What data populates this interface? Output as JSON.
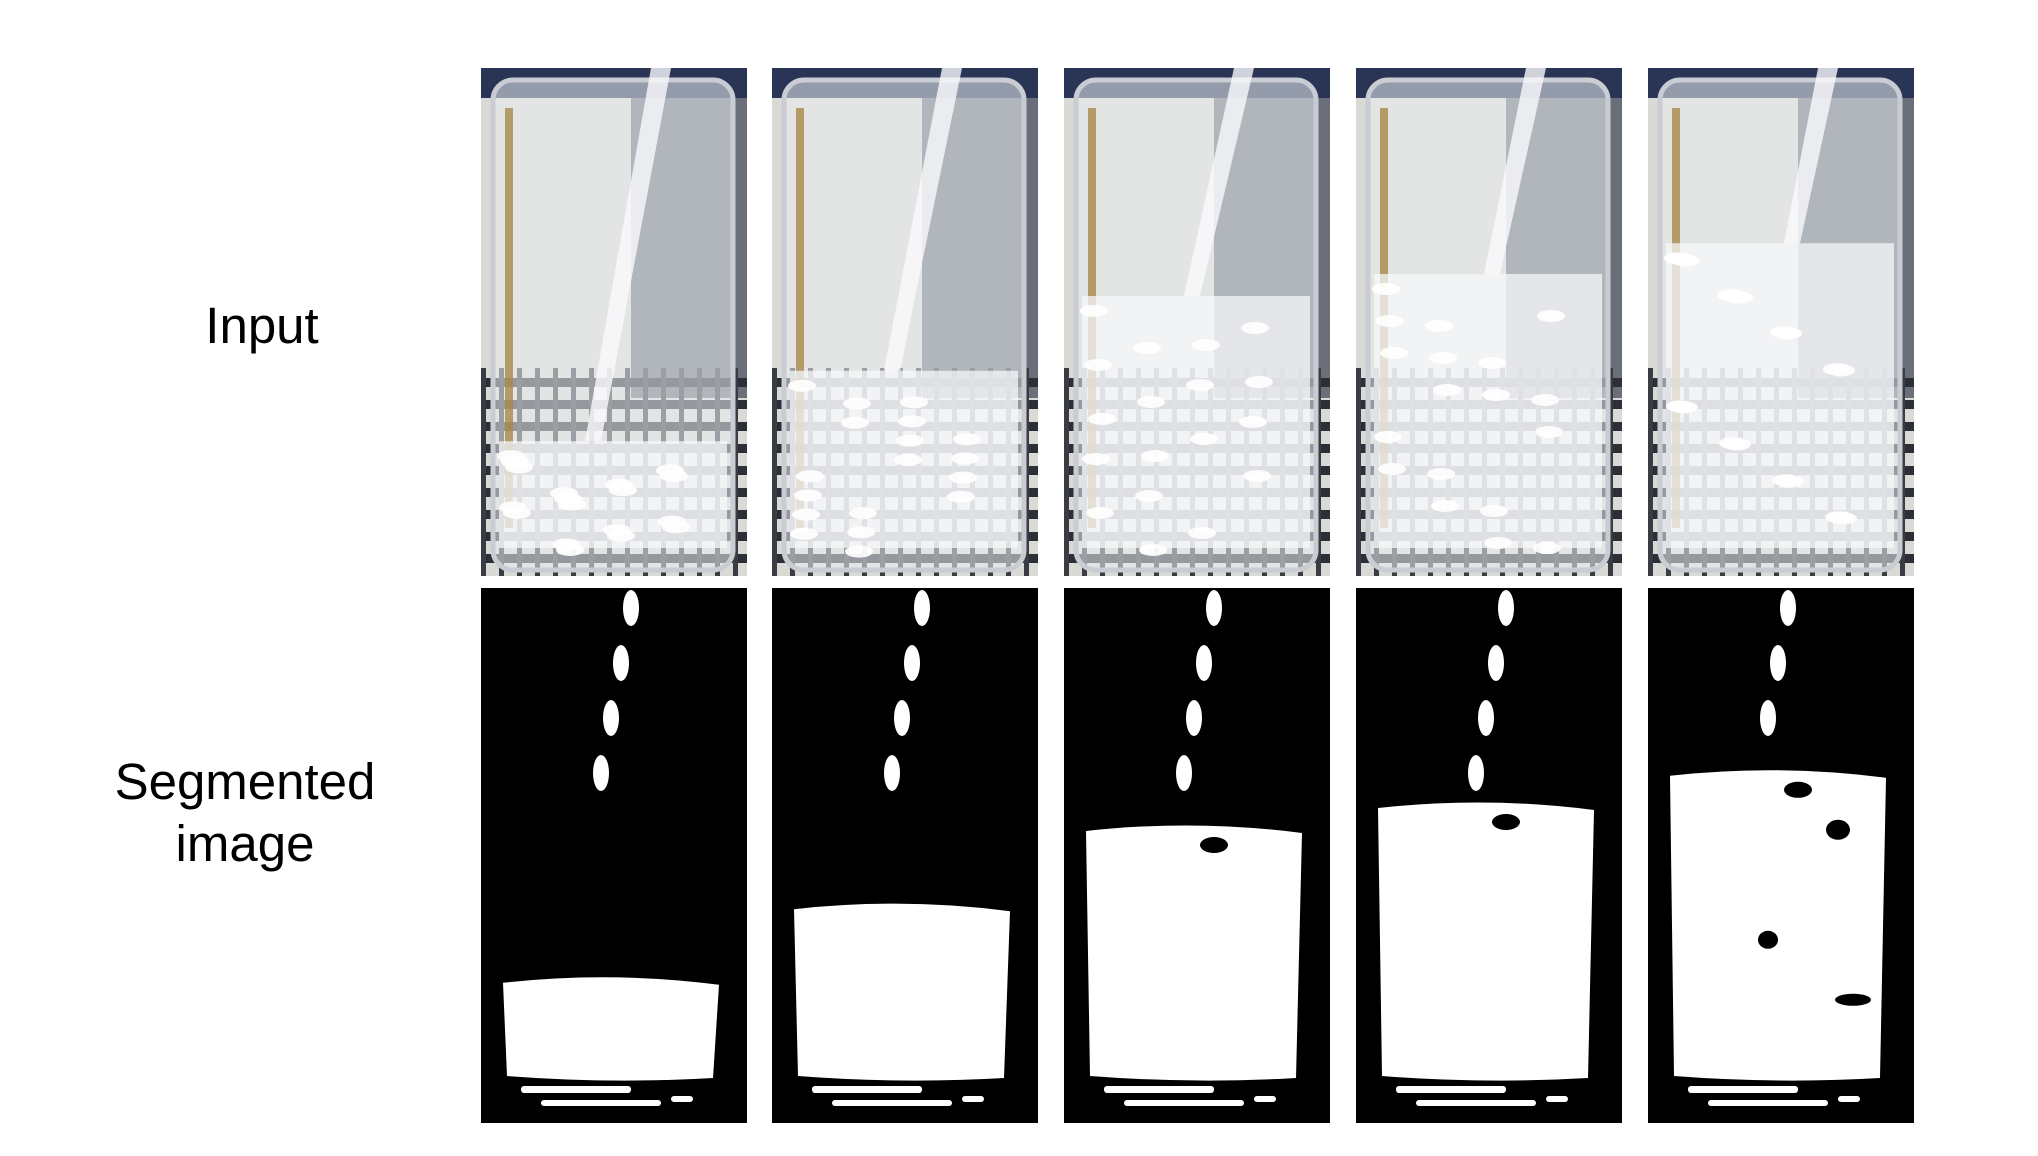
{
  "row_labels": {
    "input": "Input",
    "segmented": "Segmented\nimage"
  },
  "frames": [
    {
      "liquid_level": 0.22
    },
    {
      "liquid_level": 0.38
    },
    {
      "liquid_level": 0.55
    },
    {
      "liquid_level": 0.6
    },
    {
      "liquid_level": 0.67
    }
  ],
  "colors": {
    "background": "#ffffff",
    "mask_background": "#000000",
    "mask_foreground": "#ffffff",
    "label_text": "#000000"
  }
}
